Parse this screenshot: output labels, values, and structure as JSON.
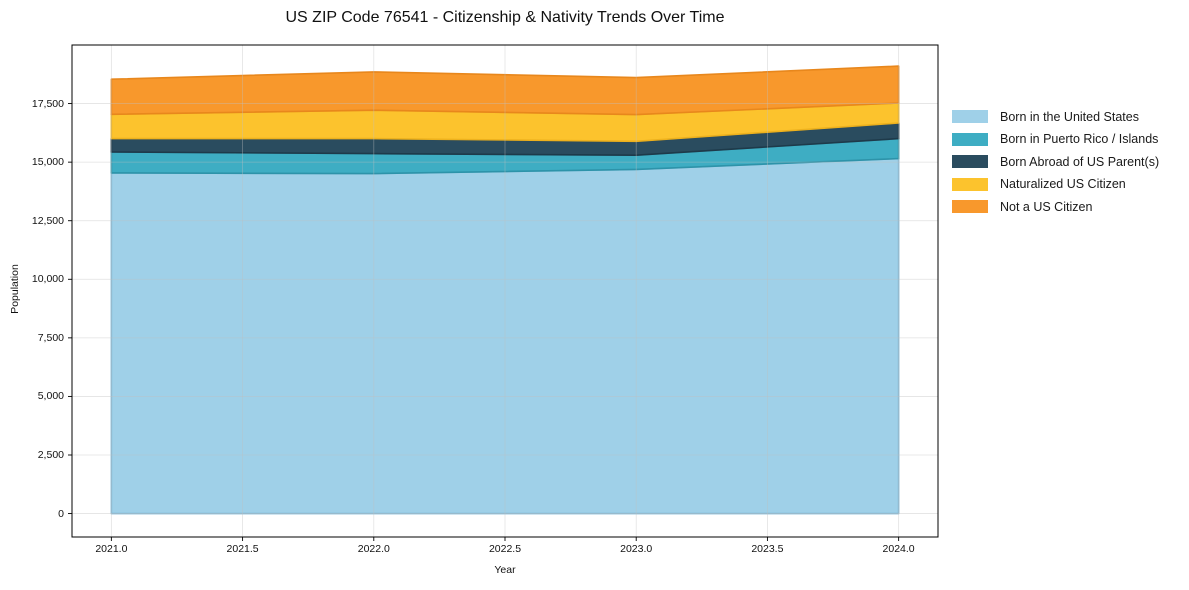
{
  "title": "US ZIP Code 76541 - Citizenship & Nativity Trends Over Time",
  "chart_data": {
    "type": "area",
    "stacked": true,
    "title": "US ZIP Code 76541 - Citizenship & Nativity Trends Over Time",
    "xlabel": "Year",
    "ylabel": "Population",
    "x": [
      2021,
      2022,
      2023,
      2024
    ],
    "series": [
      {
        "name": "Born in the United States",
        "color": "#9fd0e8",
        "edge": "#7fb8d6",
        "values": [
          14540,
          14510,
          14690,
          15150
        ]
      },
      {
        "name": "Born in Puerto Rico / Islands",
        "color": "#3eadc3",
        "edge": "#2d93a9",
        "values": [
          895,
          855,
          605,
          855
        ]
      },
      {
        "name": "Born Abroad of US Parent(s)",
        "color": "#2a4c5f",
        "edge": "#1e3a4a",
        "values": [
          570,
          640,
          595,
          665
        ]
      },
      {
        "name": "Naturalized US Citizen",
        "color": "#fcc32d",
        "edge": "#edb11d",
        "values": [
          1035,
          1210,
          1140,
          855
        ]
      },
      {
        "name": "Not a US Citizen",
        "color": "#f8982c",
        "edge": "#e8871c",
        "values": [
          1500,
          1635,
          1580,
          1575
        ]
      }
    ],
    "x_ticks": [
      2021.0,
      2021.5,
      2022.0,
      2022.5,
      2023.0,
      2023.5,
      2024.0
    ],
    "x_tick_labels": [
      "2021.0",
      "2021.5",
      "2022.0",
      "2022.5",
      "2023.0",
      "2023.5",
      "2024.0"
    ],
    "y_ticks": [
      0,
      2500,
      5000,
      7500,
      10000,
      12500,
      15000,
      17500
    ],
    "y_tick_labels": [
      "0",
      "2,500",
      "5,000",
      "7,500",
      "10,000",
      "12,500",
      "15,000",
      "17,500"
    ],
    "xlim": [
      2020.85,
      2024.15
    ],
    "ylim": [
      -1000,
      20000
    ],
    "grid": true,
    "grid_color": "#bfbfbf",
    "legend_position": "right",
    "frame_color": "#000000"
  }
}
